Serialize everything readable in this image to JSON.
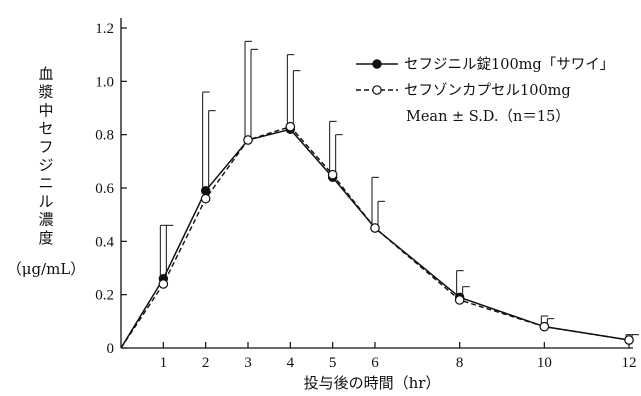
{
  "chart_data": {
    "type": "line",
    "title": "",
    "xlabel": "投与後の時間（hr）",
    "ylabel": [
      "血",
      "漿",
      "中",
      "セ",
      "フ",
      "ジ",
      "ニ",
      "ル",
      "濃",
      "度"
    ],
    "yunit": "（μg/mL）",
    "xlim": [
      0,
      12
    ],
    "ylim": [
      0,
      1.2
    ],
    "xticks": [
      1,
      2,
      3,
      4,
      5,
      6,
      8,
      10,
      12
    ],
    "yticks": [
      0,
      0.2,
      0.4,
      0.6,
      0.8,
      1.0,
      1.2
    ],
    "xtick_labels": [
      "1",
      "2",
      "3",
      "4",
      "5",
      "6",
      "8",
      "10",
      "12"
    ],
    "ytick_labels": [
      "0",
      "0.2",
      "0.4",
      "0.6",
      "0.8",
      "1.0",
      "1.2"
    ],
    "legend_position": "top-right",
    "legend_note": "Mean ± S.D.（n＝15）",
    "series": [
      {
        "name": "セフジニル錠100mg「サワイ」",
        "marker": "filled-circle",
        "line": "solid",
        "x": [
          0,
          1,
          2,
          3,
          4,
          5,
          6,
          8,
          10,
          12
        ],
        "y": [
          0,
          0.26,
          0.59,
          0.78,
          0.82,
          0.64,
          0.45,
          0.19,
          0.08,
          0.03
        ],
        "sd": [
          0,
          0.2,
          0.37,
          0.37,
          0.28,
          0.21,
          0.19,
          0.1,
          0.04,
          0.02
        ]
      },
      {
        "name": "セフゾンカプセル100mg",
        "marker": "open-circle",
        "line": "dashed",
        "x": [
          0,
          1,
          2,
          3,
          4,
          5,
          6,
          8,
          10,
          12
        ],
        "y": [
          0,
          0.24,
          0.56,
          0.78,
          0.83,
          0.65,
          0.45,
          0.18,
          0.08,
          0.03
        ],
        "sd": [
          0,
          0.22,
          0.33,
          0.34,
          0.21,
          0.15,
          0.1,
          0.05,
          0.03,
          0.02
        ]
      }
    ]
  }
}
